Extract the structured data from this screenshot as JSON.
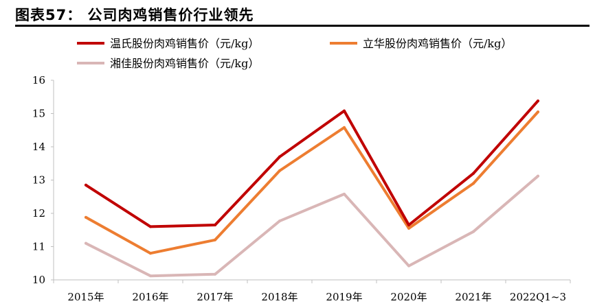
{
  "figure": {
    "title": "图表57：  公司肉鸡销售价行业领先"
  },
  "chart_data": {
    "type": "line",
    "categories": [
      "2015年",
      "2016年",
      "2017年",
      "2018年",
      "2019年",
      "2020年",
      "2021年",
      "2022Q1~3"
    ],
    "series": [
      {
        "name": "温氏股份肉鸡销售价（元/kg）",
        "color": "#C00000",
        "values": [
          12.85,
          11.6,
          11.65,
          13.7,
          15.08,
          11.65,
          13.2,
          15.38
        ]
      },
      {
        "name": "立华股份肉鸡销售价（元/kg）",
        "color": "#ED7D31",
        "values": [
          11.88,
          10.8,
          11.2,
          13.28,
          14.58,
          11.55,
          12.9,
          15.05
        ]
      },
      {
        "name": "湘佳股份肉鸡销售价（元/kg）",
        "color": "#D9B6B6",
        "values": [
          11.1,
          10.12,
          10.17,
          11.77,
          12.58,
          10.42,
          11.45,
          13.12
        ]
      }
    ],
    "ylim": [
      10,
      16
    ],
    "yticks": [
      10,
      11,
      12,
      13,
      14,
      15,
      16
    ],
    "grid": false,
    "legend_position": "top"
  }
}
